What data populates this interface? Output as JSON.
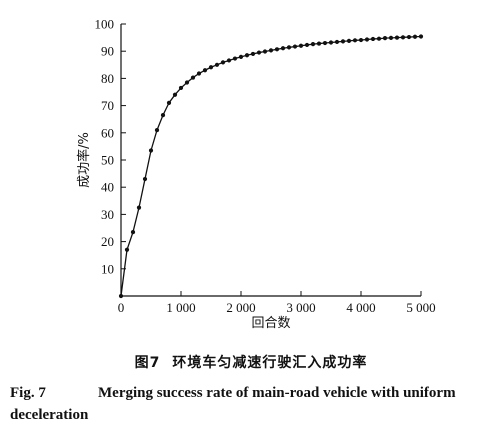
{
  "chart_data": {
    "type": "line",
    "xlabel": "回合数",
    "ylabel": "成功率/%",
    "xlim": [
      0,
      5000
    ],
    "ylim": [
      0,
      100
    ],
    "x_ticks": [
      0,
      1000,
      2000,
      3000,
      4000,
      5000
    ],
    "x_tick_labels": [
      "0",
      "1 000",
      "2 000",
      "3 000",
      "4 000",
      "5 000"
    ],
    "y_ticks": [
      10,
      20,
      30,
      40,
      50,
      60,
      70,
      80,
      90,
      100
    ],
    "y_tick_labels": [
      "10",
      "20",
      "30",
      "40",
      "50",
      "60",
      "70",
      "80",
      "90",
      "100"
    ],
    "grid": false,
    "legend": "none",
    "line_color": "#111111",
    "marker": "filled-circle",
    "series": [
      {
        "x": [
          0,
          100,
          200,
          300,
          400,
          500,
          600,
          700,
          800,
          900,
          1000,
          1100,
          1200,
          1300,
          1400,
          1500,
          1600,
          1700,
          1800,
          1900,
          2000,
          2100,
          2200,
          2300,
          2400,
          2500,
          2600,
          2700,
          2800,
          2900,
          3000,
          3100,
          3200,
          3300,
          3400,
          3500,
          3600,
          3700,
          3800,
          3900,
          4000,
          4100,
          4200,
          4300,
          4400,
          4500,
          4600,
          4700,
          4800,
          4900,
          5000
        ],
        "y": [
          0,
          17,
          23.5,
          32.5,
          43,
          53.5,
          61,
          66.5,
          71,
          74,
          76.5,
          78.5,
          80.3,
          81.8,
          83,
          84.1,
          85,
          85.9,
          86.6,
          87.3,
          87.9,
          88.5,
          89,
          89.5,
          89.9,
          90.3,
          90.7,
          91.1,
          91.4,
          91.7,
          92,
          92.3,
          92.6,
          92.8,
          93,
          93.2,
          93.4,
          93.6,
          93.8,
          94,
          94.1,
          94.3,
          94.5,
          94.6,
          94.8,
          94.9,
          95,
          95.1,
          95.2,
          95.3,
          95.4
        ]
      }
    ]
  },
  "caption": {
    "cn_number": "图7",
    "cn_title": "环境车匀减速行驶汇入成功率",
    "en_number": "Fig. 7",
    "en_title": "Merging success rate of main-road vehicle with uniform deceleration"
  }
}
